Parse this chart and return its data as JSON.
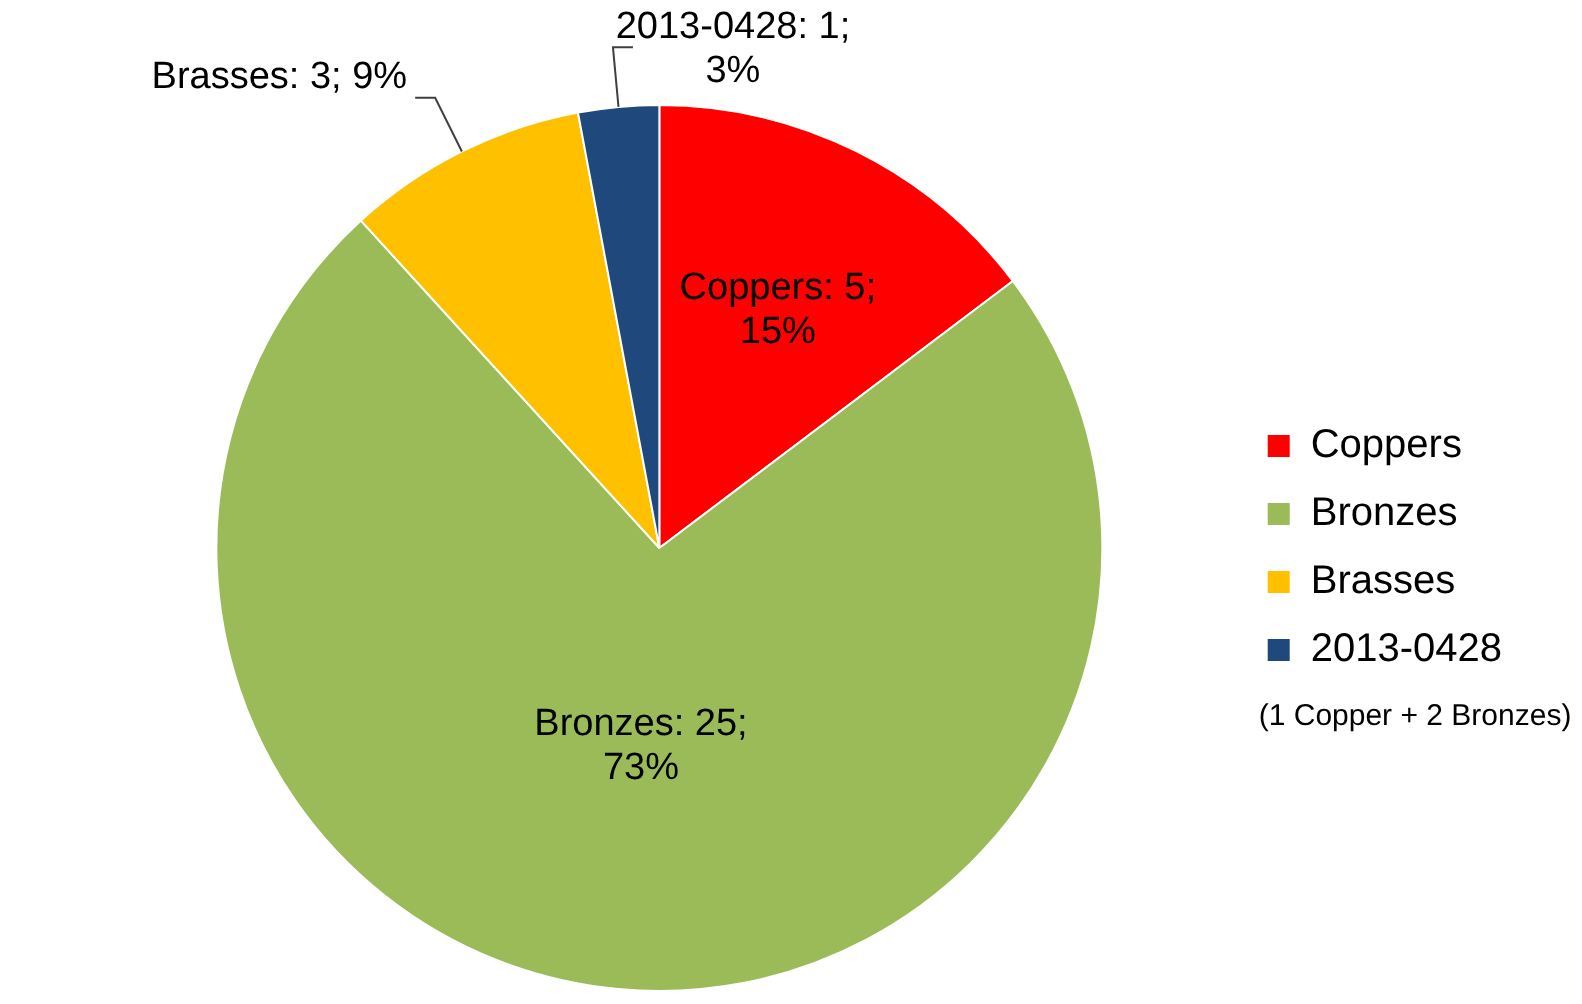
{
  "chart_data": {
    "type": "pie",
    "categories": [
      "Coppers",
      "Bronzes",
      "Brasses",
      "2013-0428"
    ],
    "values": [
      5,
      25,
      3,
      1
    ],
    "colors": [
      "#ff0000",
      "#9bbb59",
      "#ffc000",
      "#1f497d"
    ],
    "value_labels": [
      "Coppers: 5; 15%",
      "Bronzes: 25; 73%",
      "Brasses: 3; 9%",
      "2013-0428: 1; 3%"
    ],
    "legend": "right",
    "annotations": [
      "(1 Copper + 2 Bronzes)"
    ]
  }
}
